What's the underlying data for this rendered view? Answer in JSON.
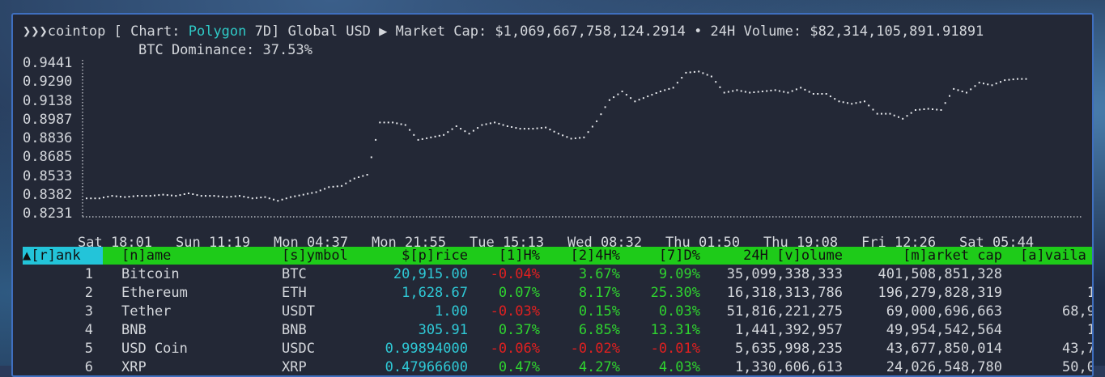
{
  "header": {
    "prompt": "❯❯❯",
    "app": "cointop",
    "chart_prefix": " [ Chart: ",
    "chart_coin": "Polygon",
    "chart_suffix": " 7D] Global USD ▶ Market Cap: $1,069,667,758,124.2914 • 24H Volume: $82,314,105,891.91891",
    "dominance": "BTC Dominance: 37.53%"
  },
  "chart_data": {
    "type": "line",
    "title": "Polygon 7D",
    "y_ticks": [
      "0.9441",
      "0.9290",
      "0.9138",
      "0.8987",
      "0.8836",
      "0.8685",
      "0.8533",
      "0.8382",
      "0.8231"
    ],
    "ylim": [
      0.8231,
      0.9441
    ],
    "x_ticks": [
      "Sat 18:01",
      "Sun 11:19",
      "Mon 04:37",
      "Mon 21:55",
      "Tue 15:13",
      "Wed 08:32",
      "Thu 01:50",
      "Thu 19:08",
      "Fri 12:26",
      "Sat 05:44"
    ],
    "values": [
      0.836,
      0.836,
      0.838,
      0.837,
      0.838,
      0.838,
      0.839,
      0.838,
      0.84,
      0.838,
      0.838,
      0.837,
      0.838,
      0.836,
      0.837,
      0.834,
      0.837,
      0.839,
      0.841,
      0.845,
      0.846,
      0.852,
      0.855,
      0.897,
      0.897,
      0.895,
      0.883,
      0.885,
      0.887,
      0.894,
      0.888,
      0.895,
      0.897,
      0.894,
      0.892,
      0.892,
      0.893,
      0.888,
      0.884,
      0.885,
      0.898,
      0.915,
      0.922,
      0.914,
      0.918,
      0.922,
      0.925,
      0.937,
      0.938,
      0.934,
      0.921,
      0.923,
      0.921,
      0.922,
      0.923,
      0.921,
      0.925,
      0.92,
      0.92,
      0.914,
      0.912,
      0.914,
      0.904,
      0.904,
      0.9,
      0.907,
      0.908,
      0.907,
      0.924,
      0.921,
      0.929,
      0.927,
      0.931,
      0.932
    ]
  },
  "table": {
    "headers": [
      "▲[r]ank",
      "[n]ame",
      "[s]ymbol",
      "$[p]rice",
      "[1]H%",
      "[2]4H%",
      "[7]D%",
      "24H [v]olume",
      "[m]arket cap",
      "[a]vaila"
    ],
    "rows": [
      {
        "rank": "1",
        "name": "Bitcoin",
        "symbol": "BTC",
        "price": "20,915.00",
        "h1": "-0.04%",
        "h24": "3.67%",
        "d7": "9.09%",
        "volume": "35,099,338,333",
        "mcap": "401,508,851,328",
        "avail": ""
      },
      {
        "rank": "2",
        "name": "Ethereum",
        "symbol": "ETH",
        "price": "1,628.67",
        "h1": "0.07%",
        "h24": "8.17%",
        "d7": "25.30%",
        "volume": "16,318,313,786",
        "mcap": "196,279,828,319",
        "avail": "1"
      },
      {
        "rank": "3",
        "name": "Tether",
        "symbol": "USDT",
        "price": "1.00",
        "h1": "-0.03%",
        "h24": "0.15%",
        "d7": "0.03%",
        "volume": "51,816,221,275",
        "mcap": "69,000,696,663",
        "avail": "68,9"
      },
      {
        "rank": "4",
        "name": "BNB",
        "symbol": "BNB",
        "price": "305.91",
        "h1": "0.37%",
        "h24": "6.85%",
        "d7": "13.31%",
        "volume": "1,441,392,957",
        "mcap": "49,954,542,564",
        "avail": "1"
      },
      {
        "rank": "5",
        "name": "USD Coin",
        "symbol": "USDC",
        "price": "0.99894000",
        "h1": "-0.06%",
        "h24": "-0.02%",
        "d7": "-0.01%",
        "volume": "5,635,998,235",
        "mcap": "43,677,850,014",
        "avail": "43,7"
      },
      {
        "rank": "6",
        "name": "XRP",
        "symbol": "XRP",
        "price": "0.47966600",
        "h1": "0.47%",
        "h24": "4.27%",
        "d7": "4.03%",
        "volume": "1,330,606,613",
        "mcap": "24,026,548,780",
        "avail": "50,0"
      }
    ]
  },
  "colors": {
    "header_bg": "#1ecb19",
    "rank_header_bg": "#23c4d9",
    "positive": "#2fd32f",
    "negative": "#e02020",
    "price": "#2fc9d6",
    "highlight": "#2fc9c6"
  }
}
